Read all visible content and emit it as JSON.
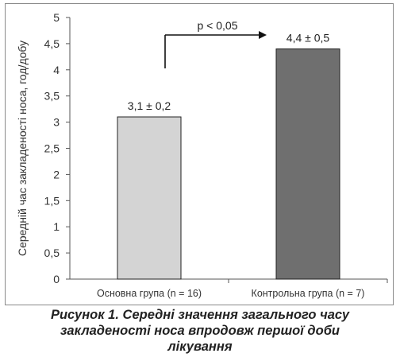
{
  "chart_data": {
    "type": "bar",
    "categories": [
      "Основна група (n = 16)",
      "Контрольна група (n = 7)"
    ],
    "values": [
      3.1,
      4.4
    ],
    "data_labels": [
      "3,1 ± 0,2",
      "4,4 ± 0,5"
    ],
    "bar_colors": [
      "#d4d4d4",
      "#6f6f6f"
    ],
    "ylabel": "Середній час закладеності носа, год/добу",
    "xlabel": "",
    "ylim": [
      0,
      5
    ],
    "yticks": [
      0,
      0.5,
      1,
      1.5,
      2,
      2.5,
      3,
      3.5,
      4,
      4.5,
      5
    ],
    "ytick_labels": [
      "0",
      "0,5",
      "1",
      "1,5",
      "2",
      "2,5",
      "3",
      "3,5",
      "4",
      "4,5",
      "5"
    ],
    "grid": false,
    "annotation": {
      "text": "p < 0,05",
      "from_bar": 0,
      "to_bar": 1
    }
  },
  "caption": {
    "line1": "Рисунок 1. Середні значення загального часу",
    "line2": "закладеності носа впродовж першої доби",
    "line3": "лікування"
  }
}
